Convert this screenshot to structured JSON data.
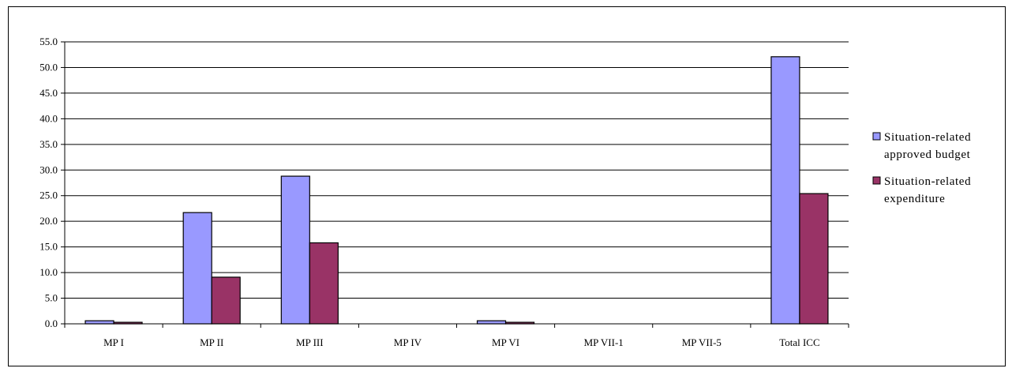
{
  "chart_data": {
    "type": "bar",
    "categories": [
      "MP I",
      "MP II",
      "MP III",
      "MP IV",
      "MP VI",
      "MP VII-1",
      "MP VII-5",
      "Total ICC"
    ],
    "series": [
      {
        "name": "Situation-related approved budget",
        "name_lines": [
          "Situation-related",
          "approved budget"
        ],
        "color": "#9999ff",
        "values": [
          0.6,
          21.7,
          28.8,
          0.0,
          0.6,
          0.0,
          0.0,
          52.1
        ]
      },
      {
        "name": "Situation-related expenditure",
        "name_lines": [
          "Situation-related",
          "expenditure"
        ],
        "color": "#993366",
        "values": [
          0.3,
          9.1,
          15.8,
          0.0,
          0.3,
          0.0,
          0.0,
          25.4
        ]
      }
    ],
    "yticks": [
      "0.0",
      "5.0",
      "10.0",
      "15.0",
      "20.0",
      "25.0",
      "30.0",
      "35.0",
      "40.0",
      "45.0",
      "50.0",
      "55.0"
    ],
    "ylim": [
      0,
      55
    ],
    "grid": true,
    "legend_position": "right",
    "title": "",
    "xlabel": "",
    "ylabel": ""
  }
}
